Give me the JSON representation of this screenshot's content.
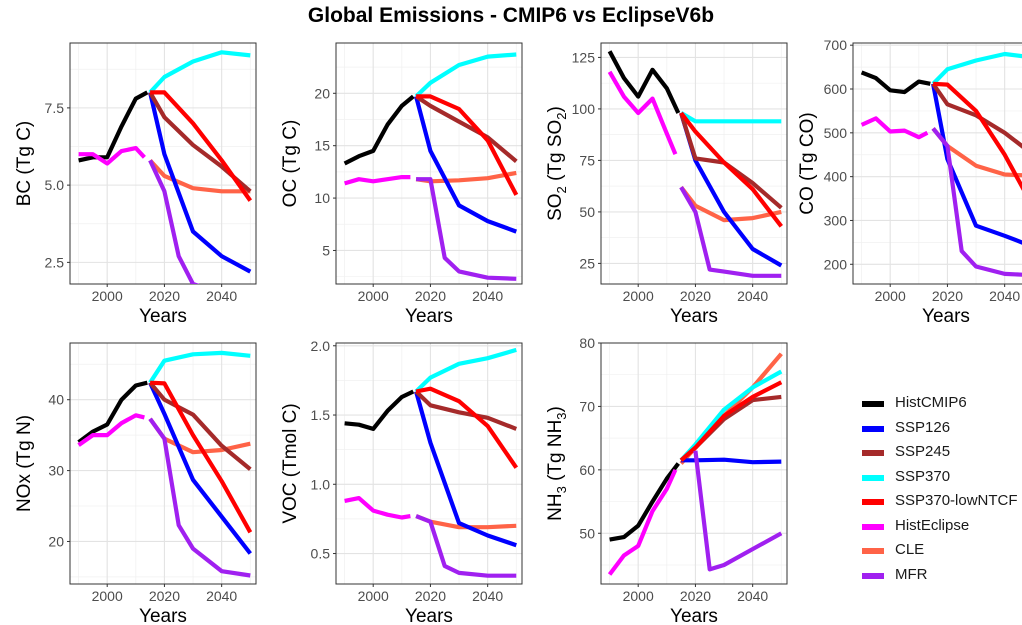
{
  "title": "Global Emissions - CMIP6 vs EclipseV6b",
  "legend": [
    {
      "name": "HistCMIP6",
      "color": "#000000"
    },
    {
      "name": "SSP126",
      "color": "#0000ff"
    },
    {
      "name": "SSP245",
      "color": "#a52a2a"
    },
    {
      "name": "SSP370",
      "color": "#00ffff"
    },
    {
      "name": "SSP370-lowNTCF",
      "color": "#ff0000"
    },
    {
      "name": "HistEclipse",
      "color": "#ff00ff"
    },
    {
      "name": "CLE",
      "color": "#ff6347"
    },
    {
      "name": "MFR",
      "color": "#a020f0"
    }
  ],
  "chart_data": [
    {
      "type": "line",
      "ylabel": "BC  (Tg C)",
      "xlabel": "Years",
      "xlim": [
        1987,
        2052
      ],
      "ylim": [
        1.8,
        9.6
      ],
      "yticks": [
        2.5,
        5.0,
        7.5
      ],
      "xticks": [
        2000,
        2020,
        2040
      ],
      "grid": true,
      "series": [
        {
          "name": "HistCMIP6",
          "x": [
            1990,
            1995,
            2000,
            2005,
            2010,
            2014
          ],
          "y": [
            5.8,
            5.9,
            5.9,
            6.9,
            7.8,
            8.0
          ]
        },
        {
          "name": "SSP126",
          "x": [
            2015,
            2020,
            2030,
            2040,
            2050
          ],
          "y": [
            8.0,
            6.0,
            3.5,
            2.7,
            2.2
          ]
        },
        {
          "name": "SSP245",
          "x": [
            2015,
            2020,
            2030,
            2040,
            2050
          ],
          "y": [
            8.0,
            7.2,
            6.3,
            5.6,
            4.8
          ]
        },
        {
          "name": "SSP370",
          "x": [
            2015,
            2020,
            2030,
            2040,
            2050
          ],
          "y": [
            8.0,
            8.5,
            9.0,
            9.3,
            9.2
          ]
        },
        {
          "name": "SSP370-lowNTCF",
          "x": [
            2015,
            2020,
            2030,
            2040,
            2050
          ],
          "y": [
            8.0,
            8.0,
            7.0,
            5.8,
            4.5
          ]
        },
        {
          "name": "HistEclipse",
          "x": [
            1990,
            1995,
            2000,
            2005,
            2010,
            2013
          ],
          "y": [
            6.0,
            6.0,
            5.7,
            6.1,
            6.2,
            5.9
          ]
        },
        {
          "name": "CLE",
          "x": [
            2015,
            2020,
            2030,
            2040,
            2050
          ],
          "y": [
            5.8,
            5.3,
            4.9,
            4.8,
            4.8
          ]
        },
        {
          "name": "MFR",
          "x": [
            2015,
            2020,
            2025,
            2030,
            2040,
            2050
          ],
          "y": [
            5.8,
            4.8,
            2.7,
            1.8,
            1.5,
            1.4
          ]
        }
      ]
    },
    {
      "type": "line",
      "ylabel": "OC  (Tg C)",
      "xlabel": "Years",
      "xlim": [
        1987,
        2052
      ],
      "ylim": [
        1.8,
        24.8
      ],
      "yticks": [
        5,
        10,
        15,
        20
      ],
      "xticks": [
        2000,
        2020,
        2040
      ],
      "grid": true,
      "series": [
        {
          "name": "HistCMIP6",
          "x": [
            1990,
            1995,
            2000,
            2005,
            2010,
            2014
          ],
          "y": [
            13.3,
            14.0,
            14.5,
            17.0,
            18.8,
            19.7
          ]
        },
        {
          "name": "SSP126",
          "x": [
            2015,
            2020,
            2030,
            2040,
            2050
          ],
          "y": [
            19.7,
            14.5,
            9.3,
            7.8,
            6.8
          ]
        },
        {
          "name": "SSP245",
          "x": [
            2015,
            2020,
            2030,
            2040,
            2050
          ],
          "y": [
            19.7,
            18.8,
            17.3,
            15.8,
            13.5
          ]
        },
        {
          "name": "SSP370",
          "x": [
            2015,
            2020,
            2030,
            2040,
            2050
          ],
          "y": [
            19.7,
            21.0,
            22.7,
            23.5,
            23.7
          ]
        },
        {
          "name": "SSP370-lowNTCF",
          "x": [
            2015,
            2020,
            2030,
            2040,
            2050
          ],
          "y": [
            19.7,
            19.7,
            18.5,
            15.5,
            10.3
          ]
        },
        {
          "name": "HistEclipse",
          "x": [
            1990,
            1995,
            2000,
            2005,
            2010,
            2013
          ],
          "y": [
            11.4,
            11.8,
            11.6,
            11.8,
            12.0,
            12.0
          ]
        },
        {
          "name": "CLE",
          "x": [
            2015,
            2020,
            2030,
            2040,
            2050
          ],
          "y": [
            11.8,
            11.6,
            11.7,
            11.9,
            12.4
          ]
        },
        {
          "name": "MFR",
          "x": [
            2015,
            2020,
            2025,
            2030,
            2040,
            2050
          ],
          "y": [
            11.8,
            11.8,
            4.3,
            3.0,
            2.4,
            2.3
          ]
        }
      ]
    },
    {
      "type": "line",
      "ylabel": "SO2 (Tg SO2)",
      "xlabel": "Years",
      "xlim": [
        1987,
        2052
      ],
      "ylim": [
        15,
        132
      ],
      "yticks": [
        25,
        50,
        75,
        100,
        125
      ],
      "xticks": [
        2000,
        2020,
        2040
      ],
      "grid": true,
      "series": [
        {
          "name": "HistCMIP6",
          "x": [
            1990,
            1995,
            2000,
            2005,
            2010,
            2014
          ],
          "y": [
            128,
            115,
            106,
            119,
            110,
            98
          ]
        },
        {
          "name": "SSP126",
          "x": [
            2015,
            2020,
            2030,
            2040,
            2050
          ],
          "y": [
            98,
            75,
            50,
            32,
            24
          ]
        },
        {
          "name": "SSP245",
          "x": [
            2015,
            2020,
            2030,
            2040,
            2050
          ],
          "y": [
            98,
            76,
            74,
            64,
            52
          ]
        },
        {
          "name": "SSP370",
          "x": [
            2015,
            2020,
            2030,
            2040,
            2050
          ],
          "y": [
            98,
            94,
            94,
            94,
            94
          ]
        },
        {
          "name": "SSP370-lowNTCF",
          "x": [
            2015,
            2020,
            2030,
            2040,
            2050
          ],
          "y": [
            98,
            89,
            74,
            61,
            43
          ]
        },
        {
          "name": "HistEclipse",
          "x": [
            1990,
            1995,
            2000,
            2005,
            2010,
            2013
          ],
          "y": [
            118,
            106,
            98,
            105,
            88,
            78
          ]
        },
        {
          "name": "CLE",
          "x": [
            2015,
            2020,
            2030,
            2040,
            2050
          ],
          "y": [
            62,
            53,
            46,
            47,
            50
          ]
        },
        {
          "name": "MFR",
          "x": [
            2015,
            2020,
            2025,
            2030,
            2040,
            2050
          ],
          "y": [
            62,
            50,
            22,
            21,
            19,
            19
          ]
        }
      ]
    },
    {
      "type": "line",
      "ylabel": "CO  (Tg CO)",
      "xlabel": "Years",
      "xlim": [
        1987,
        2052
      ],
      "ylim": [
        155,
        705
      ],
      "yticks": [
        200,
        300,
        400,
        500,
        600,
        700
      ],
      "xticks": [
        2000,
        2020,
        2040
      ],
      "grid": true,
      "series": [
        {
          "name": "HistCMIP6",
          "x": [
            1990,
            1995,
            2000,
            2005,
            2010,
            2014
          ],
          "y": [
            638,
            625,
            597,
            593,
            617,
            612
          ]
        },
        {
          "name": "SSP126",
          "x": [
            2015,
            2020,
            2030,
            2040,
            2050
          ],
          "y": [
            612,
            440,
            288,
            265,
            240
          ]
        },
        {
          "name": "SSP245",
          "x": [
            2015,
            2020,
            2030,
            2040,
            2050
          ],
          "y": [
            612,
            565,
            540,
            500,
            450
          ]
        },
        {
          "name": "SSP370",
          "x": [
            2015,
            2020,
            2030,
            2040,
            2050
          ],
          "y": [
            612,
            645,
            665,
            680,
            672
          ]
        },
        {
          "name": "SSP370-lowNTCF",
          "x": [
            2015,
            2020,
            2030,
            2040,
            2050
          ],
          "y": [
            612,
            610,
            550,
            450,
            330
          ]
        },
        {
          "name": "HistEclipse",
          "x": [
            1990,
            1995,
            2000,
            2005,
            2010,
            2013
          ],
          "y": [
            518,
            533,
            503,
            505,
            490,
            500
          ]
        },
        {
          "name": "CLE",
          "x": [
            2015,
            2020,
            2030,
            2040,
            2050
          ],
          "y": [
            510,
            470,
            425,
            405,
            402
          ]
        },
        {
          "name": "MFR",
          "x": [
            2015,
            2020,
            2025,
            2030,
            2040,
            2050
          ],
          "y": [
            510,
            470,
            230,
            195,
            178,
            175
          ]
        }
      ]
    },
    {
      "type": "line",
      "ylabel": "NOx  (Tg N)",
      "xlabel": "Years",
      "xlim": [
        1987,
        2052
      ],
      "ylim": [
        14,
        48
      ],
      "yticks": [
        20,
        30,
        40
      ],
      "xticks": [
        2000,
        2020,
        2040
      ],
      "grid": true,
      "series": [
        {
          "name": "HistCMIP6",
          "x": [
            1990,
            1995,
            2000,
            2005,
            2010,
            2014
          ],
          "y": [
            34.0,
            35.5,
            36.5,
            40.0,
            42.0,
            42.4
          ]
        },
        {
          "name": "SSP126",
          "x": [
            2015,
            2020,
            2030,
            2040,
            2050
          ],
          "y": [
            42.4,
            38.0,
            28.7,
            23.5,
            18.3
          ]
        },
        {
          "name": "SSP245",
          "x": [
            2015,
            2020,
            2030,
            2040,
            2050
          ],
          "y": [
            42.4,
            40.0,
            37.9,
            33.5,
            30.2
          ]
        },
        {
          "name": "SSP370",
          "x": [
            2015,
            2020,
            2030,
            2040,
            2050
          ],
          "y": [
            42.4,
            45.5,
            46.4,
            46.6,
            46.2
          ]
        },
        {
          "name": "SSP370-lowNTCF",
          "x": [
            2015,
            2020,
            2030,
            2040,
            2050
          ],
          "y": [
            42.4,
            42.3,
            35.0,
            28.5,
            21.3
          ]
        },
        {
          "name": "HistEclipse",
          "x": [
            1990,
            1995,
            2000,
            2005,
            2010,
            2013
          ],
          "y": [
            33.6,
            35.0,
            35.0,
            36.7,
            37.8,
            37.5
          ]
        },
        {
          "name": "CLE",
          "x": [
            2015,
            2020,
            2030,
            2040,
            2050
          ],
          "y": [
            37.3,
            34.5,
            32.6,
            32.9,
            33.8
          ]
        },
        {
          "name": "MFR",
          "x": [
            2015,
            2020,
            2025,
            2030,
            2040,
            2050
          ],
          "y": [
            37.3,
            34.5,
            22.3,
            19.0,
            15.8,
            15.2
          ]
        }
      ]
    },
    {
      "type": "line",
      "ylabel": "VOC  (Tmol C)",
      "xlabel": "Years",
      "xlim": [
        1987,
        2052
      ],
      "ylim": [
        0.28,
        2.02
      ],
      "yticks": [
        0.5,
        1.0,
        1.5,
        2.0
      ],
      "xticks": [
        2000,
        2020,
        2040
      ],
      "grid": true,
      "series": [
        {
          "name": "HistCMIP6",
          "x": [
            1990,
            1995,
            2000,
            2005,
            2010,
            2014
          ],
          "y": [
            1.44,
            1.43,
            1.4,
            1.53,
            1.63,
            1.67
          ]
        },
        {
          "name": "SSP126",
          "x": [
            2015,
            2020,
            2030,
            2040,
            2050
          ],
          "y": [
            1.67,
            1.3,
            0.72,
            0.63,
            0.56
          ]
        },
        {
          "name": "SSP245",
          "x": [
            2015,
            2020,
            2030,
            2040,
            2050
          ],
          "y": [
            1.67,
            1.57,
            1.52,
            1.48,
            1.4
          ]
        },
        {
          "name": "SSP370",
          "x": [
            2015,
            2020,
            2030,
            2040,
            2050
          ],
          "y": [
            1.67,
            1.77,
            1.87,
            1.91,
            1.97
          ]
        },
        {
          "name": "SSP370-lowNTCF",
          "x": [
            2015,
            2020,
            2030,
            2040,
            2050
          ],
          "y": [
            1.67,
            1.69,
            1.6,
            1.42,
            1.12
          ]
        },
        {
          "name": "HistEclipse",
          "x": [
            1990,
            1995,
            2000,
            2005,
            2010,
            2013
          ],
          "y": [
            0.88,
            0.9,
            0.81,
            0.78,
            0.76,
            0.77
          ]
        },
        {
          "name": "CLE",
          "x": [
            2015,
            2020,
            2030,
            2040,
            2050
          ],
          "y": [
            0.77,
            0.73,
            0.69,
            0.69,
            0.7
          ]
        },
        {
          "name": "MFR",
          "x": [
            2015,
            2020,
            2025,
            2030,
            2040,
            2050
          ],
          "y": [
            0.77,
            0.73,
            0.41,
            0.36,
            0.34,
            0.34
          ]
        }
      ]
    },
    {
      "type": "line",
      "ylabel": "NH3 (Tg NH3)",
      "xlabel": "Years",
      "xlim": [
        1987,
        2052
      ],
      "ylim": [
        42,
        80
      ],
      "yticks": [
        50,
        60,
        70,
        80
      ],
      "xticks": [
        2000,
        2020,
        2040
      ],
      "grid": true,
      "series": [
        {
          "name": "HistCMIP6",
          "x": [
            1990,
            1995,
            2000,
            2005,
            2010,
            2014
          ],
          "y": [
            49.0,
            49.4,
            51.2,
            55.0,
            58.6,
            61.0
          ]
        },
        {
          "name": "SSP126",
          "x": [
            2015,
            2020,
            2030,
            2040,
            2050
          ],
          "y": [
            61.5,
            61.5,
            61.6,
            61.2,
            61.3
          ]
        },
        {
          "name": "SSP245",
          "x": [
            2015,
            2020,
            2030,
            2040,
            2050
          ],
          "y": [
            61.5,
            63.5,
            68.0,
            71.0,
            71.5
          ]
        },
        {
          "name": "SSP370",
          "x": [
            2015,
            2020,
            2030,
            2040,
            2050
          ],
          "y": [
            61.5,
            64.0,
            69.5,
            73.0,
            75.5
          ]
        },
        {
          "name": "SSP370-lowNTCF",
          "x": [
            2015,
            2020,
            2030,
            2040,
            2050
          ],
          "y": [
            61.5,
            63.5,
            68.5,
            71.5,
            73.8
          ]
        },
        {
          "name": "HistEclipse",
          "x": [
            1990,
            1995,
            2000,
            2005,
            2010,
            2013
          ],
          "y": [
            43.5,
            46.5,
            48.0,
            53.5,
            57.0,
            60.0
          ]
        },
        {
          "name": "CLE",
          "x": [
            2015,
            2020,
            2030,
            2040,
            2050
          ],
          "y": [
            61.0,
            63.5,
            68.5,
            73.0,
            78.3
          ]
        },
        {
          "name": "MFR",
          "x": [
            2020,
            2025,
            2030,
            2040,
            2050
          ],
          "y": [
            63.0,
            44.3,
            45.0,
            47.5,
            50.0
          ]
        }
      ]
    }
  ]
}
